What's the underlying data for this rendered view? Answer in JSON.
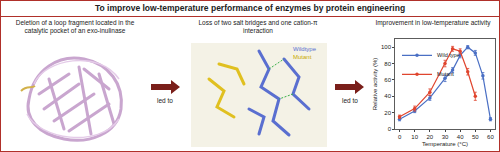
{
  "header": {
    "title": "To improve low-temperature performance of enzymes by protein engineering"
  },
  "panels": [
    {
      "caption": "Deletion of a loop fragment located in the catalytic pocket of an exo-inulinase"
    },
    {
      "caption": "Loss of two salt bridges and one cation-π interaction",
      "legend": [
        "Wildtype",
        "Mutant"
      ]
    },
    {
      "caption": "Improvement in low-temperature activity"
    }
  ],
  "arrows": [
    {
      "label": "led to"
    },
    {
      "label": "led to"
    }
  ],
  "chart_data": {
    "type": "line",
    "xlabel": "Temperature (°C)",
    "ylabel": "Relative activity (%)",
    "x": [
      0,
      10,
      20,
      30,
      35,
      40,
      45,
      50,
      55,
      60
    ],
    "series": [
      {
        "name": "Wild type",
        "color": "#4a6fc4",
        "marker": "circle",
        "values": [
          12,
          22,
          38,
          62,
          72,
          90,
          100,
          93,
          65,
          12
        ],
        "errors": [
          2,
          2,
          3,
          4,
          3,
          3,
          2,
          3,
          4,
          2
        ]
      },
      {
        "name": "Mutant",
        "color": "#e0452e",
        "marker": "circle",
        "values": [
          15,
          25,
          45,
          80,
          98,
          95,
          70,
          40,
          null,
          null
        ],
        "errors": [
          2,
          3,
          4,
          4,
          3,
          3,
          4,
          5,
          null,
          null
        ]
      }
    ],
    "xlim": [
      -3,
      63
    ],
    "xticks": [
      0,
      10,
      20,
      30,
      40,
      50,
      60
    ],
    "ylim": [
      0,
      110
    ],
    "yticks": [
      0,
      20,
      40,
      60,
      80,
      100
    ],
    "grid": false,
    "legend": "upper left"
  }
}
